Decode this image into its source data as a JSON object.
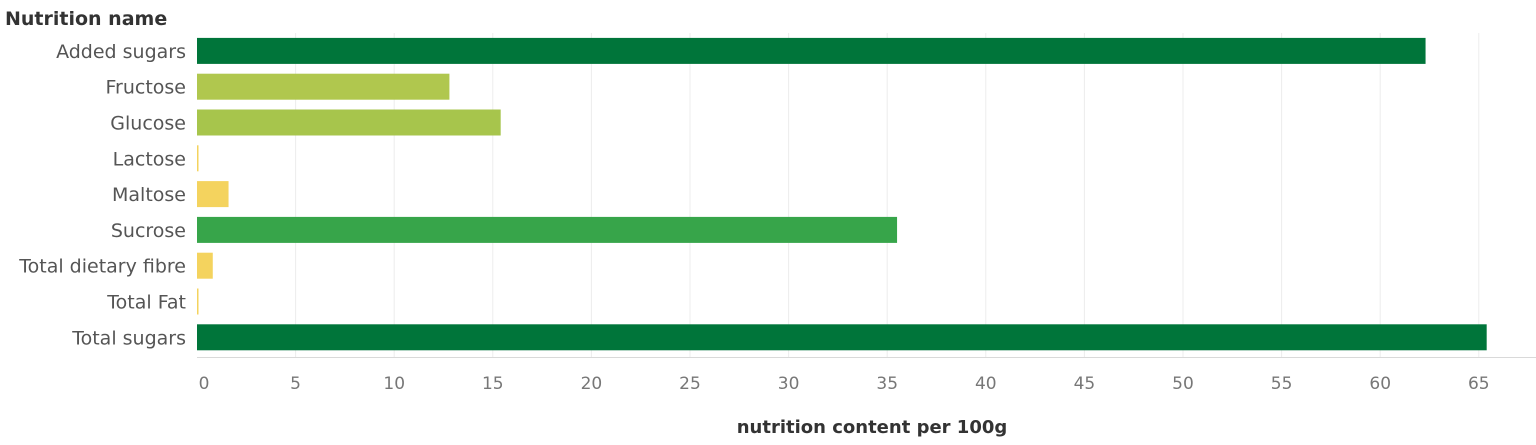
{
  "chart_data": {
    "type": "bar",
    "orientation": "horizontal",
    "row_header": "Nutrition name",
    "xlabel": "nutrition content per 100g",
    "ylabel": "",
    "xlim": [
      0,
      65
    ],
    "xticks": [
      0,
      5,
      10,
      15,
      20,
      25,
      30,
      35,
      40,
      45,
      50,
      55,
      60,
      65
    ],
    "grid": true,
    "categories": [
      "Added sugars",
      "Fructose",
      "Glucose",
      "Lactose",
      "Maltose",
      "Sucrose",
      "Total dietary fibre",
      "Total Fat",
      "Total sugars"
    ],
    "values": [
      62.3,
      12.8,
      15.4,
      0.05,
      1.6,
      35.5,
      0.8,
      0.05,
      65.4
    ],
    "colors": [
      "#00753a",
      "#b0c74e",
      "#a7c54c",
      "#f4d35e",
      "#f4d35e",
      "#37a54a",
      "#f4d35e",
      "#f4d35e",
      "#00753a"
    ]
  }
}
